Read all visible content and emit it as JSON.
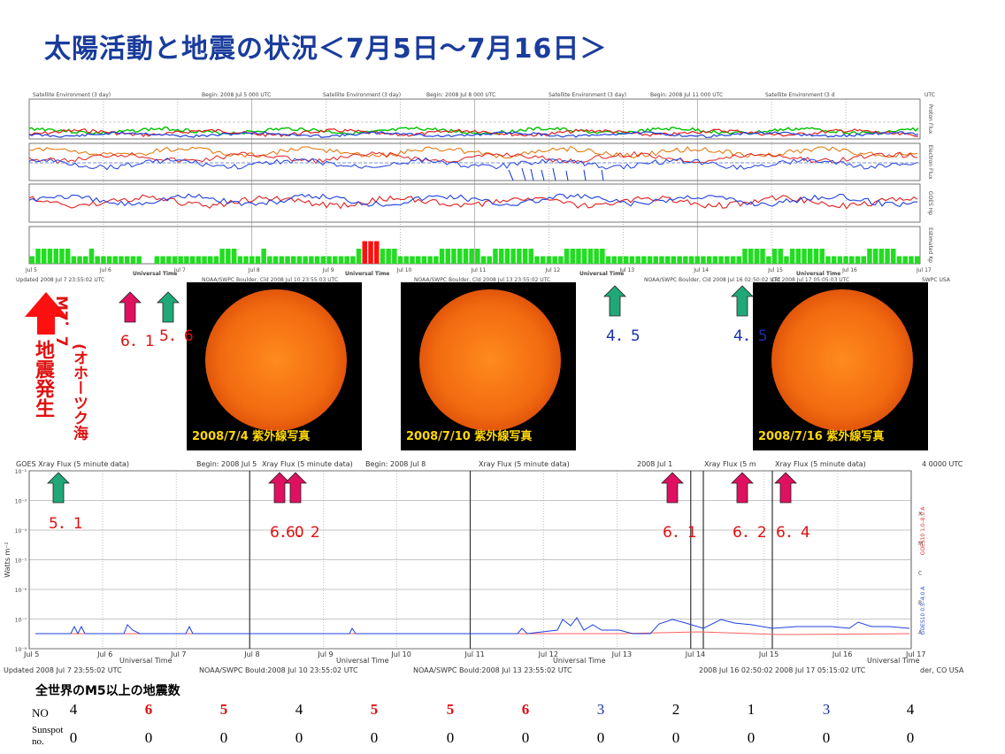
{
  "page_title": "太陽活動と地震の状況＜7月5日～7月16日＞",
  "chart_data": [
    {
      "type": "line",
      "chart": "satellite-environment-panel",
      "top_headers": [
        "Satellite Environment (3 day)",
        "Begin: 2008 Jul 5 000 UTC",
        "Satellite Environment (3 day)",
        "Begin: 2008 Jul 8 000 UTC",
        "Satellite Environment (3 day)",
        "Begin: 2008 Jul 11 000 UTC",
        "Satellite Environment (3 d",
        "UTC"
      ],
      "right_labels": [
        "Proton Flux",
        "Electron Flux",
        "GOES Hp",
        "Estimated Kp"
      ],
      "x_ticks": [
        "Jul 5",
        "Jul 6",
        "Jul 7",
        "Jul 8",
        "Jul 9",
        "Jul 10",
        "Jul 11",
        "Jul 12",
        "Jul 13",
        "Jul 14",
        "Jul 15",
        "Jul 16",
        "Jul 17"
      ],
      "xlabel": "Universal Time",
      "footer_left": "Updated 2008 Jul 7 23:55:02 UTC",
      "footer_mid": [
        "NOAA/SWPC Boulder, Cld 2008 Jul 10 23:55:03 UTC",
        "NOAA/SWPC Boulder, Cld 2008 Jul 13 23:55:02 UTC",
        "NOAA/SWPC Boulder, Cld 2008 Jul 16 02:50:02 UTC",
        "Cld 2008 Jul 17 05:05:03 UTC"
      ],
      "footer_right": "SWPC USA",
      "kp_series": {
        "name": "Estimated Kp",
        "values": [
          1,
          2,
          2,
          2,
          2,
          2,
          2,
          1,
          1,
          1,
          2,
          1,
          1,
          1,
          1,
          1,
          1,
          1,
          1,
          0,
          0,
          1,
          1,
          1,
          1,
          1,
          1,
          1,
          1,
          1,
          1,
          1,
          2,
          2,
          2,
          1,
          1,
          1,
          1,
          2,
          1,
          1,
          1,
          1,
          1,
          1,
          1,
          1,
          1,
          1,
          1,
          1,
          1,
          1,
          1,
          2,
          3,
          3,
          3,
          2,
          2,
          2,
          1,
          1,
          1,
          1,
          1,
          1,
          1,
          2,
          2,
          2,
          2,
          2,
          2,
          2,
          1,
          1,
          2,
          2,
          2,
          2,
          2,
          2,
          2,
          1,
          1,
          1,
          1,
          1,
          2,
          2,
          2,
          2,
          2,
          2,
          2,
          1,
          1,
          1,
          1,
          1,
          1,
          1,
          1,
          1,
          1,
          1,
          1,
          1,
          1,
          1,
          1,
          1,
          1,
          1,
          1,
          1,
          1,
          1,
          2,
          2,
          2,
          2,
          1,
          2,
          2,
          1,
          2,
          2,
          2,
          2,
          2,
          2,
          1,
          1,
          1,
          1,
          1,
          1,
          1,
          2,
          2,
          2,
          2,
          2,
          1,
          1,
          1,
          1
        ]
      }
    },
    {
      "type": "line",
      "chart": "goes-xray-flux",
      "headers": [
        "GOES Xray Flux (5 minute data)",
        "Begin: 2008 Jul 5",
        "Xray Flux (5 minute data)",
        "Begin: 2008 Jul 8",
        "Xray Flux (5 minute data)",
        "2008 Jul 1",
        "Xray Flux (5 m",
        "Xray Flux (5 minute data)",
        "4 0000 UTC"
      ],
      "ylabel": "Watts m⁻²",
      "y_ticks": [
        "10⁻²",
        "10⁻³",
        "10⁻⁴",
        "10⁻⁵",
        "10⁻⁶",
        "10⁻⁷",
        "10⁻⁸"
      ],
      "class_labels": [
        "X",
        "M",
        "C",
        "B",
        "A"
      ],
      "right_legend": [
        "GOES10 1.0–8.0 A",
        "GOES10 0.5–4.0 A"
      ],
      "x_ticks": [
        "Jul 5",
        "Jul 6",
        "Jul 7",
        "Jul 8",
        "Jul 9",
        "Jul 10",
        "Jul 11",
        "Jul 12",
        "Jul 13",
        "Jul 14",
        "Jul 15",
        "Jul 16",
        "Jul 17"
      ],
      "xlabel": "Universal Time",
      "footers": [
        "Updated 2008 Jul 7 23:55:02 UTC",
        "NOAA/SWPC Bould:2008 Jul 10 23:55:02 UTC",
        "NOAA/SWPC Bould:2008 Jul 13 23:55:02 UTC",
        "2008 Jul 16 02:50:02",
        "2008 Jul 17 05:15:02 UTC",
        "der, CO USA"
      ]
    },
    {
      "type": "table",
      "title": "全世界のM5以上の地震数",
      "row_labels": [
        "NO",
        "Sunspot no."
      ],
      "earthquake_counts": [
        4,
        6,
        5,
        4,
        5,
        5,
        6,
        3,
        2,
        1,
        3,
        4
      ],
      "earthquake_colors": [
        "#000",
        "#e01010",
        "#e01010",
        "#000",
        "#e01010",
        "#e01010",
        "#e01010",
        "#1a2fa8",
        "#000",
        "#000",
        "#1a2fa8",
        "#000"
      ],
      "sunspot_numbers": [
        0,
        0,
        0,
        0,
        0,
        0,
        0,
        0,
        0,
        0,
        0,
        0
      ]
    }
  ],
  "sun_images": [
    {
      "caption": "2008/7/4 紫外線写真"
    },
    {
      "caption": "2008/7/10 紫外線写真"
    },
    {
      "caption": "2008/7/16 紫外線写真"
    }
  ],
  "big_quake": {
    "mag": "M7．7",
    "region": "(オホーツク海",
    "label": "地震発生"
  },
  "upper_markers": [
    {
      "mag": "6．1",
      "color": "#e01060",
      "text_color": "red"
    },
    {
      "mag": "5．6",
      "color": "#20a878",
      "text_color": "red"
    },
    {
      "mag": "4．5",
      "color": "#20a878",
      "text_color": "blue"
    },
    {
      "mag": "4．5",
      "color": "#20a878",
      "text_color": "blue"
    }
  ],
  "lower_markers": [
    {
      "mag": "5．1",
      "color": "#20a878"
    },
    {
      "mag": "6．0",
      "color": "#e01060"
    },
    {
      "mag": "6．2",
      "color": "#e01060"
    },
    {
      "mag": "6．1",
      "color": "#e01060"
    },
    {
      "mag": "6．2",
      "color": "#e01060"
    },
    {
      "mag": "6．4",
      "color": "#e01060"
    }
  ]
}
